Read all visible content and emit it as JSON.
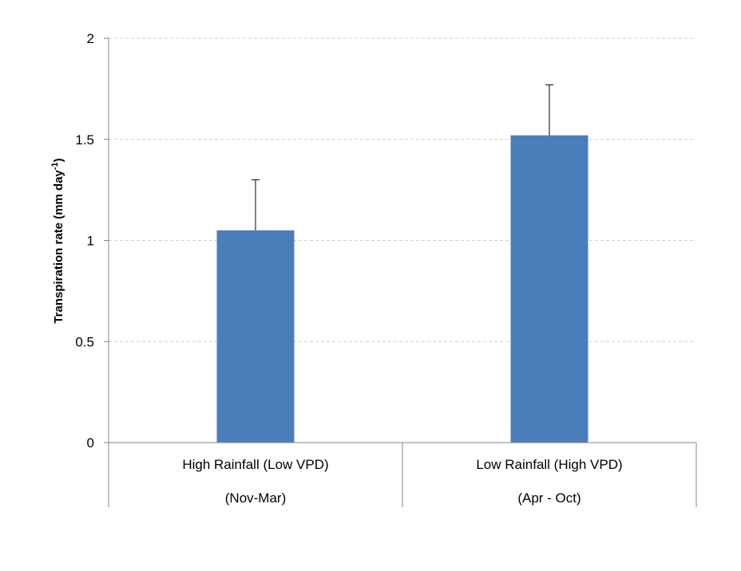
{
  "chart_data": {
    "type": "bar",
    "title": "",
    "xlabel": "",
    "ylabel": {
      "main": "Transpiration rate (mm day",
      "superscript": "-1",
      "close": ")"
    },
    "categories": [
      {
        "line1": "High Rainfall (Low VPD)",
        "line2": "(Nov-Mar)"
      },
      {
        "line1": "Low Rainfall (High VPD)",
        "line2": "(Apr - Oct)"
      }
    ],
    "values": [
      1.05,
      1.52
    ],
    "error_plus": [
      0.25,
      0.25
    ],
    "ylim": [
      0,
      2
    ],
    "yticks": [
      {
        "value": 0,
        "label": "0"
      },
      {
        "value": 0.5,
        "label": "0.5"
      },
      {
        "value": 1,
        "label": "1"
      },
      {
        "value": 1.5,
        "label": "1.5"
      },
      {
        "value": 2,
        "label": "2"
      }
    ],
    "grid": true,
    "legend": "none",
    "bar_color": "#4a7ebb",
    "grid_color": "#d0d0d0",
    "axis_color": "#868686"
  }
}
